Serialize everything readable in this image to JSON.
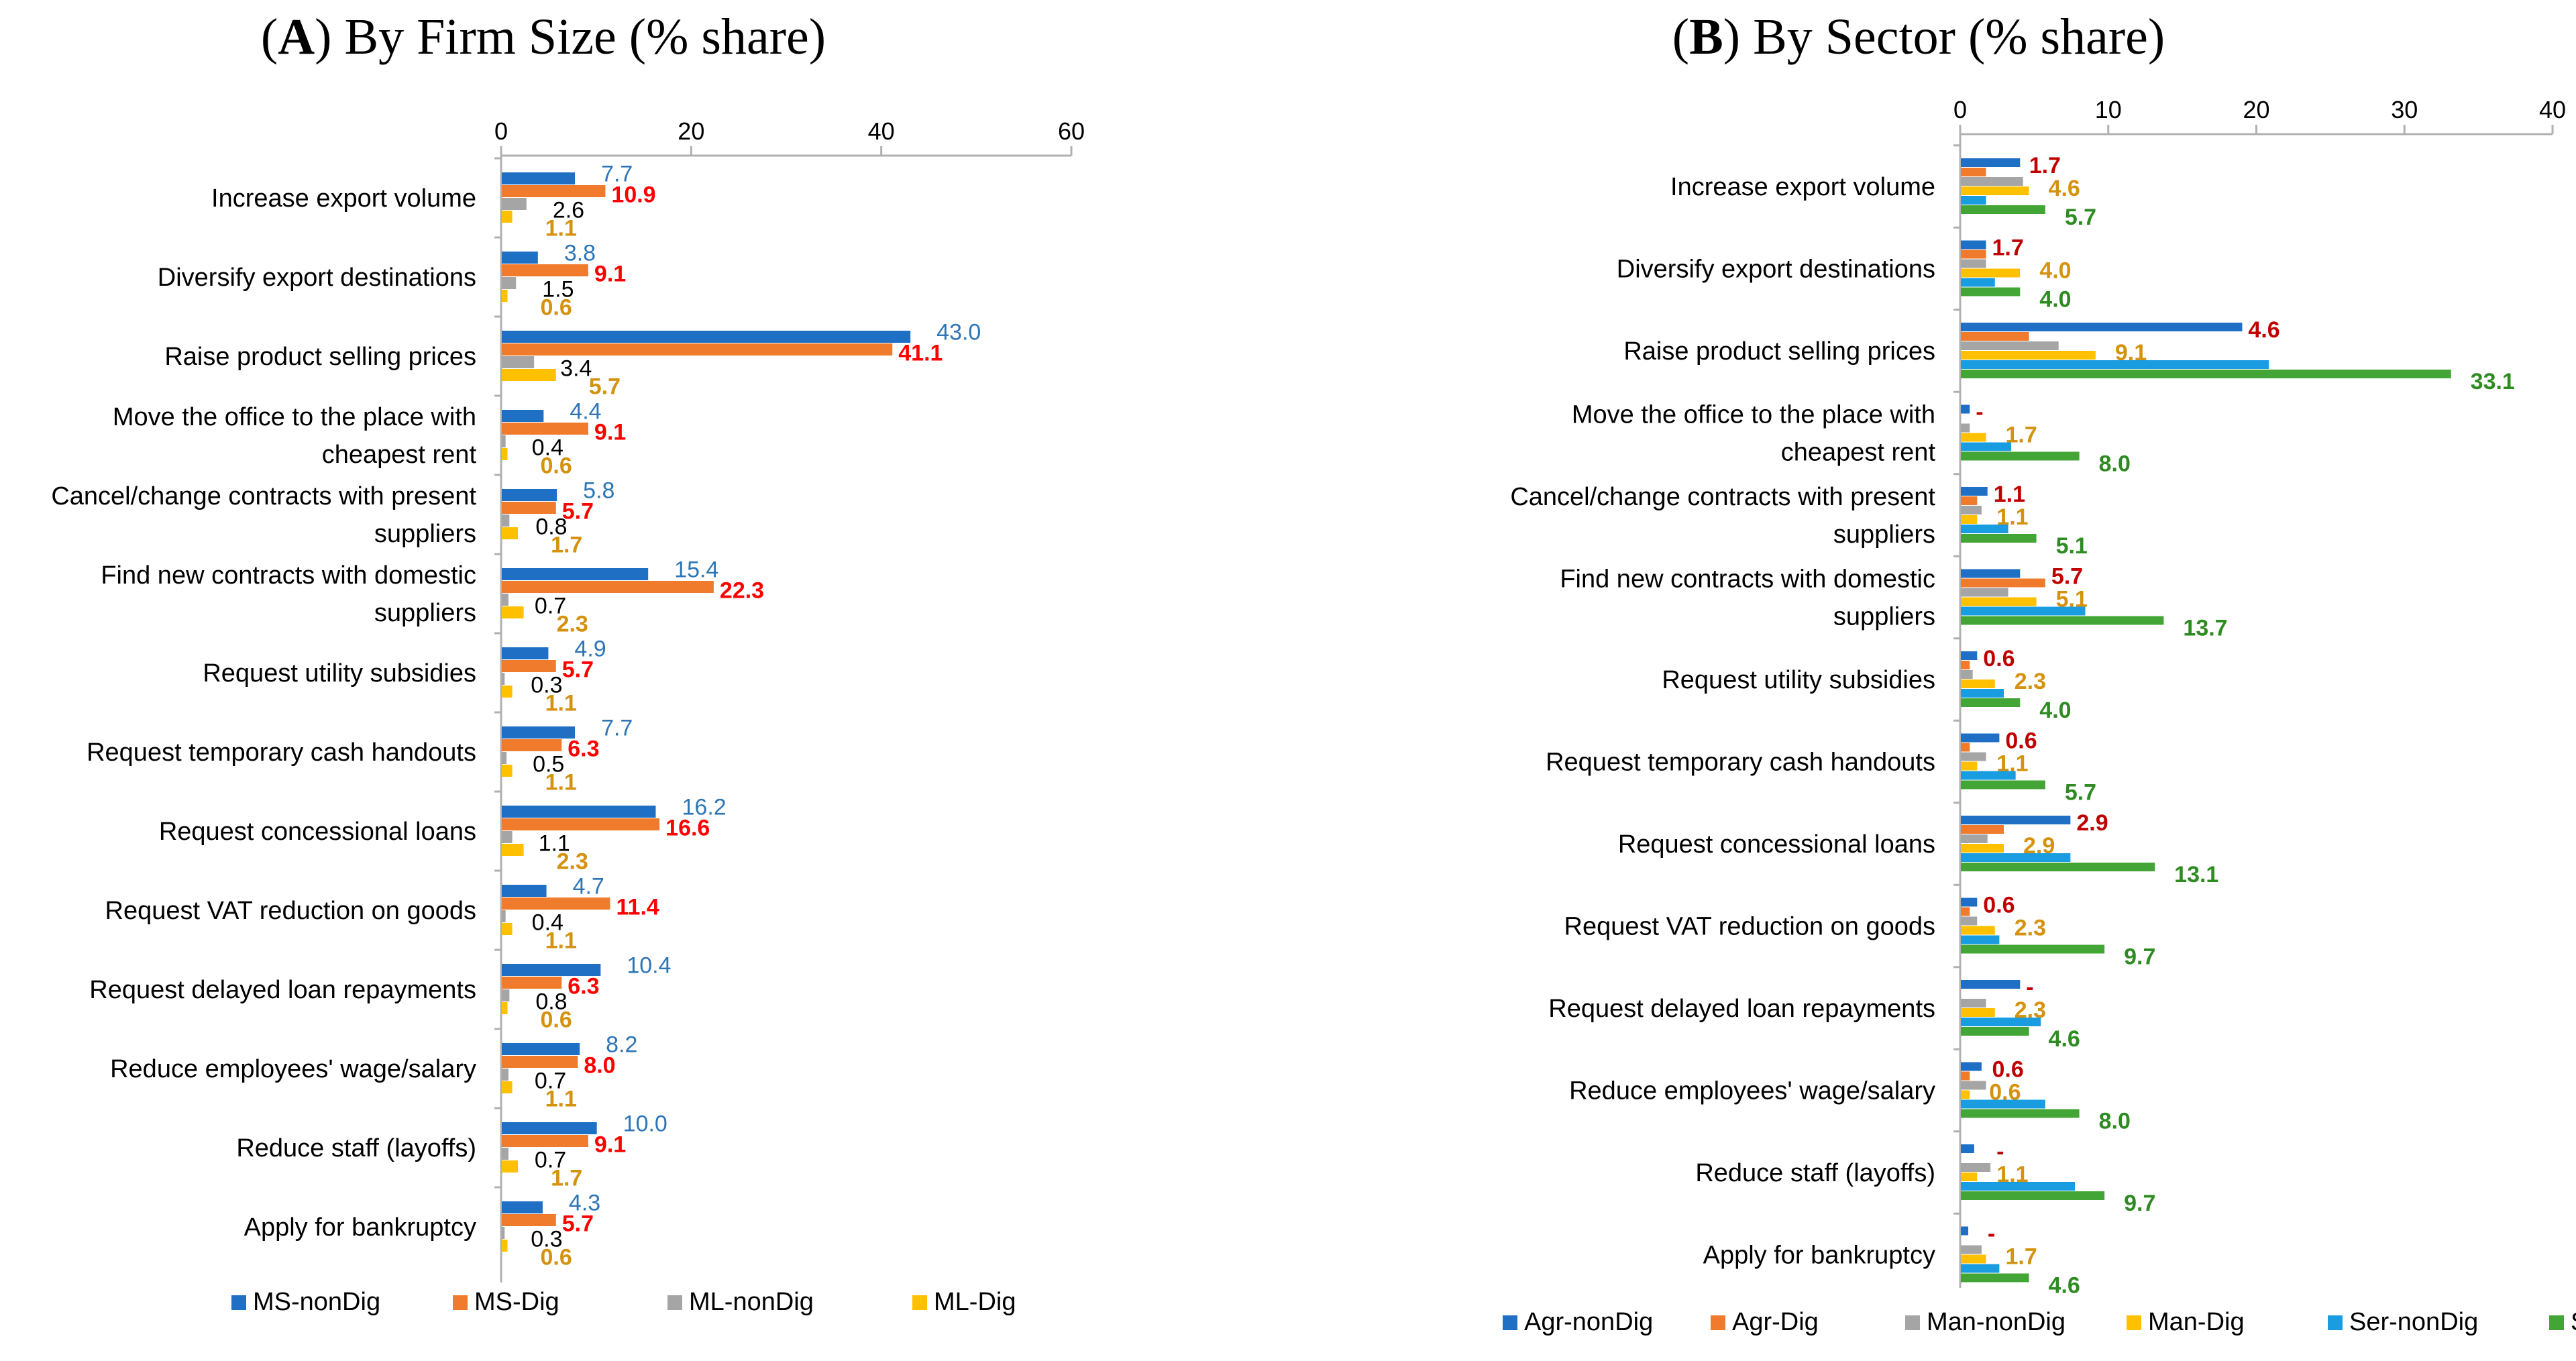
{
  "chart_data": [
    {
      "type": "bar",
      "orientation": "horizontal",
      "title_letter": "A",
      "title_rest": " By Firm Size (% share)",
      "title_open": "(",
      "title_close": ")",
      "xlim": [
        0,
        60
      ],
      "xticks": [
        "0",
        "20",
        "40",
        "60"
      ],
      "xtick_values": [
        0,
        20,
        40,
        60
      ],
      "categories": [
        [
          "Increase export volume"
        ],
        [
          "Diversify export destinations"
        ],
        [
          "Raise product selling prices"
        ],
        [
          "Move the office to the place with",
          "cheapest rent"
        ],
        [
          "Cancel/change contracts with present",
          "suppliers"
        ],
        [
          "Find new contracts with domestic",
          "suppliers"
        ],
        [
          "Request utility subsidies"
        ],
        [
          "Request temporary cash handouts"
        ],
        [
          "Request concessional loans"
        ],
        [
          "Request VAT reduction on goods"
        ],
        [
          "Request delayed loan repayments"
        ],
        [
          "Reduce employees' wage/salary"
        ],
        [
          "Reduce staff (layoffs)"
        ],
        [
          "Apply for bankruptcy"
        ]
      ],
      "series": [
        {
          "name": "MS-nonDig",
          "color": "#1f6fc5",
          "label_color": "#2e75b6",
          "bold": false,
          "values": [
            7.7,
            3.8,
            43.0,
            4.4,
            5.8,
            15.4,
            4.9,
            7.7,
            16.2,
            4.7,
            10.4,
            8.2,
            10.0,
            4.3
          ],
          "labels": [
            "7.7",
            "3.8",
            "43.0",
            "4.4",
            "5.8",
            "15.4",
            "4.9",
            "7.7",
            "16.2",
            "4.7",
            "10.4",
            "8.2",
            "10.0",
            "4.3"
          ]
        },
        {
          "name": "MS-Dig",
          "color": "#f07b2c",
          "label_color": "#ff0000",
          "bold": true,
          "values": [
            10.9,
            9.1,
            41.1,
            9.1,
            5.7,
            22.3,
            5.7,
            6.3,
            16.6,
            11.4,
            6.3,
            8.0,
            9.1,
            5.7
          ],
          "labels": [
            "10.9",
            "9.1",
            "41.1",
            "9.1",
            "5.7",
            "22.3",
            "5.7",
            "6.3",
            "16.6",
            "11.4",
            "6.3",
            "8.0",
            "9.1",
            "5.7"
          ]
        },
        {
          "name": "ML-nonDig",
          "color": "#a5a5a5",
          "label_color": "#000000",
          "bold": false,
          "values": [
            2.6,
            1.5,
            3.4,
            0.4,
            0.8,
            0.7,
            0.3,
            0.5,
            1.1,
            0.4,
            0.8,
            0.7,
            0.7,
            0.3
          ],
          "labels": [
            "2.6",
            "1.5",
            "3.4",
            "0.4",
            "0.8",
            "0.7",
            "0.3",
            "0.5",
            "1.1",
            "0.4",
            "0.8",
            "0.7",
            "0.7",
            "0.3"
          ]
        },
        {
          "name": "ML-Dig",
          "color": "#ffc000",
          "label_color": "#d4920e",
          "bold": true,
          "values": [
            1.1,
            0.6,
            5.7,
            0.6,
            1.7,
            2.3,
            1.1,
            1.1,
            2.3,
            1.1,
            0.6,
            1.1,
            1.7,
            0.6
          ],
          "labels": [
            "1.1",
            "0.6",
            "5.7",
            "0.6",
            "1.7",
            "2.3",
            "1.1",
            "1.1",
            "2.3",
            "1.1",
            "0.6",
            "1.1",
            "1.7",
            "0.6"
          ]
        }
      ],
      "legend_position": "bottom"
    },
    {
      "type": "bar",
      "orientation": "horizontal",
      "title_letter": "B",
      "title_rest": " By Sector (% share)",
      "title_open": "(",
      "title_close": ")",
      "xlim": [
        0,
        40
      ],
      "xticks": [
        "0",
        "10",
        "20",
        "30",
        "40"
      ],
      "xtick_values": [
        0,
        10,
        20,
        30,
        40
      ],
      "categories": [
        [
          "Increase export volume"
        ],
        [
          "Diversify export destinations"
        ],
        [
          "Raise product selling prices"
        ],
        [
          "Move the office to the place with",
          "cheapest rent"
        ],
        [
          "Cancel/change contracts with present",
          "suppliers"
        ],
        [
          "Find new contracts with domestic",
          "suppliers"
        ],
        [
          "Request utility subsidies"
        ],
        [
          "Request temporary cash handouts"
        ],
        [
          "Request concessional loans"
        ],
        [
          "Request VAT reduction on goods"
        ],
        [
          "Request delayed loan repayments"
        ],
        [
          "Reduce employees' wage/salary"
        ],
        [
          "Reduce staff (layoffs)"
        ],
        [
          "Apply for bankruptcy"
        ]
      ],
      "series": [
        {
          "name": "Agr-nonDig",
          "color": "#1f6fc5",
          "label_color": "#2e75b6",
          "bold": false,
          "values": [
            4.0,
            1.7,
            19.0,
            0.6,
            1.8,
            4.0,
            1.1,
            2.6,
            7.4,
            1.1,
            4.0,
            1.4,
            0.9,
            0.5
          ],
          "labels": [
            "",
            "",
            "",
            "",
            "",
            "",
            "",
            "",
            "",
            "",
            "",
            "",
            "",
            ""
          ]
        },
        {
          "name": "Agr-Dig",
          "color": "#f07b2c",
          "label_color": "#c00000",
          "bold": true,
          "values": [
            1.7,
            1.7,
            4.6,
            0,
            1.1,
            5.7,
            0.6,
            0.6,
            2.9,
            0.6,
            0,
            0.6,
            0,
            0
          ],
          "labels": [
            "1.7",
            "1.7",
            "4.6",
            "-",
            "1.1",
            "5.7",
            "0.6",
            "0.6",
            "2.9",
            "0.6",
            "-",
            "0.6",
            "-",
            "-"
          ]
        },
        {
          "name": "Man-nonDig",
          "color": "#a5a5a5",
          "label_color": "#000000",
          "bold": false,
          "values": [
            4.2,
            1.7,
            6.6,
            0.6,
            1.4,
            3.2,
            0.8,
            1.7,
            1.8,
            1.1,
            1.7,
            1.7,
            2.0,
            1.4
          ],
          "labels": [
            "",
            "",
            "",
            "",
            "",
            "",
            "",
            "",
            "",
            "",
            "",
            "",
            "",
            ""
          ]
        },
        {
          "name": "Man-Dig",
          "color": "#ffc000",
          "label_color": "#d4920e",
          "bold": true,
          "values": [
            4.6,
            4.0,
            9.1,
            1.7,
            1.1,
            5.1,
            2.3,
            1.1,
            2.9,
            2.3,
            2.3,
            0.6,
            1.1,
            1.7
          ],
          "labels": [
            "4.6",
            "4.0",
            "9.1",
            "1.7",
            "1.1",
            "5.1",
            "2.3",
            "1.1",
            "2.9",
            "2.3",
            "2.3",
            "0.6",
            "1.1",
            "1.7"
          ]
        },
        {
          "name": "Ser-nonDig",
          "color": "#1a9ce0",
          "label_color": "#2e75b6",
          "bold": false,
          "values": [
            1.7,
            2.3,
            20.8,
            3.4,
            3.2,
            8.4,
            2.9,
            3.7,
            7.4,
            2.6,
            5.4,
            5.7,
            7.7,
            2.6
          ],
          "labels": [
            "",
            "",
            "",
            "",
            "",
            "",
            "",
            "",
            "",
            "",
            "",
            "",
            "",
            ""
          ]
        },
        {
          "name": "Ser-Dig",
          "color": "#43a535",
          "label_color": "#2e8b22",
          "bold": true,
          "values": [
            5.7,
            4.0,
            33.1,
            8.0,
            5.1,
            13.7,
            4.0,
            5.7,
            13.1,
            9.7,
            4.6,
            8.0,
            9.7,
            4.6
          ],
          "labels": [
            "5.7",
            "4.0",
            "33.1",
            "8.0",
            "5.1",
            "13.7",
            "4.0",
            "5.7",
            "13.1",
            "9.7",
            "4.6",
            "8.0",
            "9.7",
            "4.6"
          ]
        }
      ],
      "legend_position": "bottom"
    }
  ]
}
